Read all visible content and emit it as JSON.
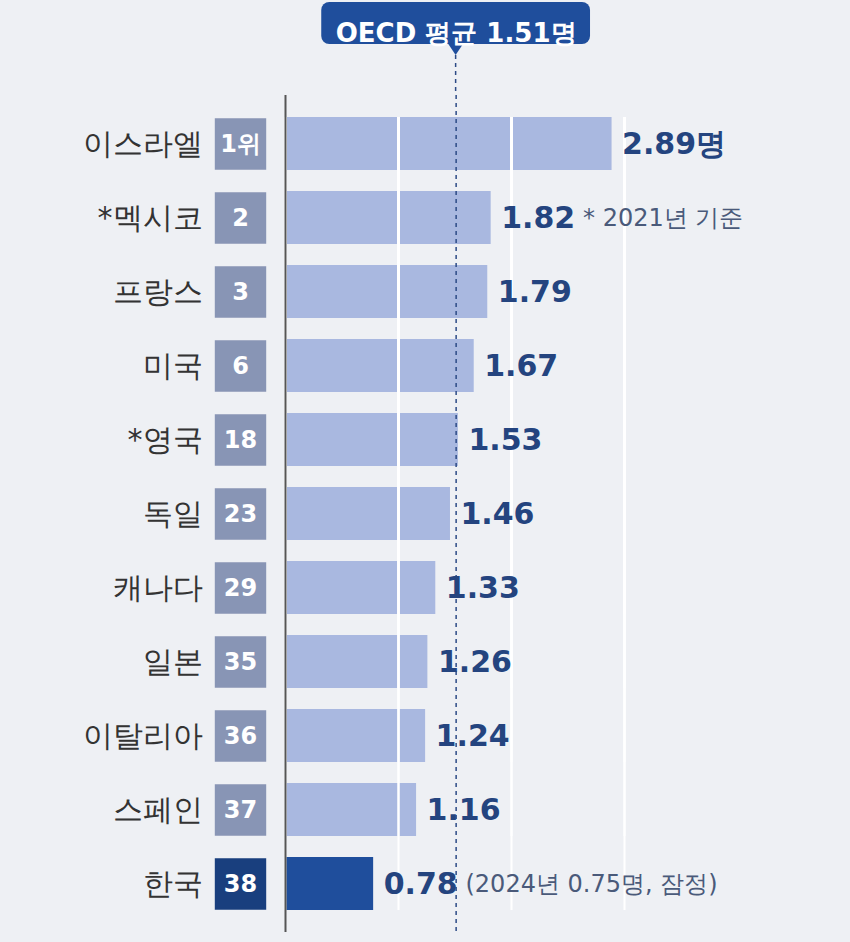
{
  "chart_data": {
    "type": "bar",
    "orientation": "horizontal",
    "categories": [
      "이스라엘",
      "*멕시코",
      "프랑스",
      "미국",
      "*영국",
      "독일",
      "캐나다",
      "일본",
      "이탈리아",
      "스페인",
      "한국"
    ],
    "values": [
      2.89,
      1.82,
      1.79,
      1.67,
      1.53,
      1.46,
      1.33,
      1.26,
      1.24,
      1.16,
      0.78
    ],
    "value_labels": [
      "2.89명",
      "1.82",
      "1.79",
      "1.67",
      "1.53",
      "1.46",
      "1.33",
      "1.26",
      "1.24",
      "1.16",
      "0.78"
    ],
    "ranks": [
      "1위",
      "2",
      "3",
      "6",
      "18",
      "23",
      "29",
      "35",
      "36",
      "37",
      "38"
    ],
    "colors": [
      "#a9b8e0",
      "#a9b8e0",
      "#a9b8e0",
      "#a9b8e0",
      "#a9b8e0",
      "#a9b8e0",
      "#a9b8e0",
      "#a9b8e0",
      "#a9b8e0",
      "#a9b8e0",
      "#1f4e9c"
    ],
    "xlim": [
      0,
      3
    ],
    "xticks": [
      0,
      1,
      2,
      3
    ],
    "grid": true,
    "tick_labels": false,
    "data_labels": true,
    "reference_line": {
      "value": 1.51,
      "label": "OECD 평균 1.51명"
    },
    "annotations": [
      {
        "category": "*멕시코",
        "text": "* 2021년 기준"
      },
      {
        "category": "한국",
        "text": "(2024년 0.75명, 잠정)"
      }
    ]
  }
}
